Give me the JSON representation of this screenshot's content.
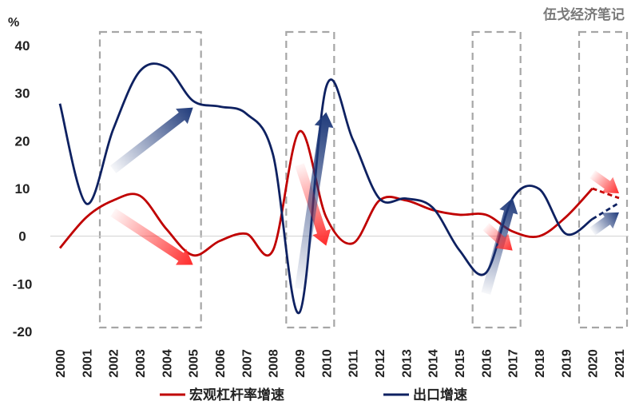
{
  "chart_data": {
    "type": "line",
    "watermark": "伍戈经济笔记",
    "unit": "%",
    "categories": [
      "2000",
      "2001",
      "2002",
      "2003",
      "2004",
      "2005",
      "2006",
      "2007",
      "2008",
      "2009",
      "2010",
      "2011",
      "2012",
      "2013",
      "2014",
      "2015",
      "2016",
      "2017",
      "2018",
      "2019",
      "2020",
      "2021"
    ],
    "ylim": [
      -20,
      40
    ],
    "yticks": [
      -20,
      -10,
      0,
      10,
      20,
      30,
      40
    ],
    "ytick_labels": [
      "-20",
      "-10",
      "0",
      "10",
      "20",
      "30",
      "40"
    ],
    "series": [
      {
        "name": "宏观杠杆率增速",
        "color": "#c00000",
        "values": [
          -2.5,
          4.0,
          7.5,
          8.5,
          1.5,
          -4.0,
          -1.0,
          0.5,
          -3.0,
          22.0,
          4.0,
          -1.5,
          7.5,
          7.5,
          5.5,
          4.5,
          4.5,
          1.0,
          0.0,
          4.0,
          10.0,
          8.0
        ],
        "dashed_from_index": 20
      },
      {
        "name": "出口增速",
        "color": "#0e2161",
        "values": [
          27.8,
          6.8,
          22.4,
          34.6,
          35.4,
          28.4,
          27.2,
          25.7,
          17.2,
          -16.0,
          31.3,
          20.3,
          7.9,
          7.9,
          6.0,
          -2.9,
          -7.7,
          7.9,
          9.9,
          0.5,
          3.6,
          7.0
        ],
        "dashed_from_index": 20
      }
    ],
    "highlight_periods": [
      [
        "2002",
        "2005"
      ],
      [
        "2009",
        "2010"
      ],
      [
        "2016",
        "2017"
      ],
      [
        "2020",
        "2021"
      ]
    ],
    "annotations": [
      {
        "type": "arrow",
        "series": "出口增速",
        "direction": "up",
        "from": [
          "2002",
          14
        ],
        "to": [
          "2005",
          27
        ]
      },
      {
        "type": "arrow",
        "series": "宏观杠杆率增速",
        "direction": "down",
        "from": [
          "2002",
          5
        ],
        "to": [
          "2005",
          -6
        ]
      },
      {
        "type": "arrow",
        "series": "宏观杠杆率增速",
        "direction": "down",
        "from": [
          "2009",
          15
        ],
        "to": [
          "2010",
          -2
        ]
      },
      {
        "type": "arrow",
        "series": "出口增速",
        "direction": "up",
        "from": [
          "2009",
          -11
        ],
        "to": [
          "2010",
          26
        ]
      },
      {
        "type": "arrow",
        "series": "出口增速",
        "direction": "up",
        "from": [
          "2016",
          -12
        ],
        "to": [
          "2017",
          8
        ]
      },
      {
        "type": "arrow",
        "series": "宏观杠杆率增速",
        "direction": "down",
        "from": [
          "2016",
          2
        ],
        "to": [
          "2017",
          -3
        ]
      },
      {
        "type": "arrow",
        "series": "宏观杠杆率增速",
        "direction": "down",
        "from": [
          "2020",
          13
        ],
        "to": [
          "2021",
          9
        ]
      },
      {
        "type": "arrow",
        "series": "出口增速",
        "direction": "up",
        "from": [
          "2020",
          1
        ],
        "to": [
          "2021",
          5
        ]
      }
    ],
    "legend": [
      {
        "label": "宏观杠杆率增速",
        "color": "#c00000"
      },
      {
        "label": "出口增速",
        "color": "#0e2161"
      }
    ],
    "legend_position": "bottom"
  }
}
